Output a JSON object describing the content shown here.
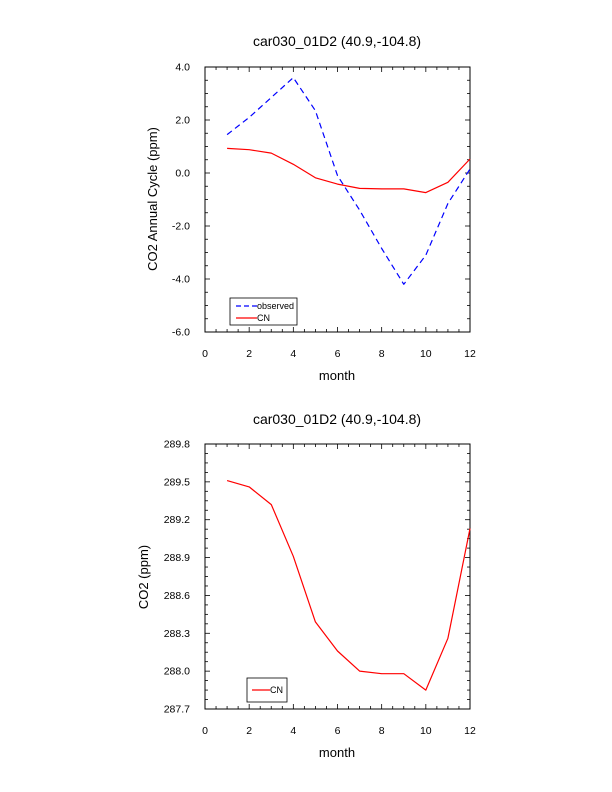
{
  "chart_data": [
    {
      "type": "line",
      "title": "car030_01D2 (40.9,-104.8)",
      "xlabel": "month",
      "ylabel": "CO2 Annual Cycle (ppm)",
      "xlim": [
        0,
        12
      ],
      "ylim": [
        -6.0,
        4.0
      ],
      "xticks": [
        0,
        2,
        4,
        6,
        8,
        10,
        12
      ],
      "xtick_labels": [
        "0",
        "2",
        "4",
        "6",
        "8",
        "10",
        "12"
      ],
      "yticks": [
        -6.0,
        -4.0,
        -2.0,
        0.0,
        2.0,
        4.0
      ],
      "ytick_labels": [
        "-6.0",
        "-4.0",
        "-2.0",
        "0.0",
        "2.0",
        "4.0"
      ],
      "grid": false,
      "legend_position": "bottom-left",
      "x": [
        1,
        2,
        3,
        4,
        5,
        6,
        7,
        8,
        9,
        10,
        11,
        12
      ],
      "series": [
        {
          "name": "observed",
          "color": "#0000ff",
          "dash": "dashed",
          "values": [
            1.45,
            2.1,
            2.85,
            3.6,
            2.35,
            -0.1,
            -1.4,
            -2.85,
            -4.2,
            -3.1,
            -1.15,
            0.15
          ]
        },
        {
          "name": "CN",
          "color": "#ff0000",
          "dash": "solid",
          "values": [
            0.93,
            0.88,
            0.75,
            0.33,
            -0.18,
            -0.42,
            -0.58,
            -0.6,
            -0.6,
            -0.74,
            -0.35,
            0.53
          ]
        }
      ]
    },
    {
      "type": "line",
      "title": "car030_01D2 (40.9,-104.8)",
      "xlabel": "month",
      "ylabel": "CO2 (ppm)",
      "xlim": [
        0,
        12
      ],
      "ylim": [
        287.7,
        289.8
      ],
      "xticks": [
        0,
        2,
        4,
        6,
        8,
        10,
        12
      ],
      "xtick_labels": [
        "0",
        "2",
        "4",
        "6",
        "8",
        "10",
        "12"
      ],
      "yticks": [
        287.7,
        288.0,
        288.3,
        288.6,
        288.9,
        289.2,
        289.5,
        289.8
      ],
      "ytick_labels": [
        "287.7",
        "288.0",
        "288.3",
        "288.6",
        "288.9",
        "289.2",
        "289.5",
        "289.8"
      ],
      "grid": false,
      "legend_position": "bottom-left",
      "x": [
        1,
        2,
        3,
        4,
        5,
        6,
        7,
        8,
        9,
        10,
        11,
        12
      ],
      "series": [
        {
          "name": "CN",
          "color": "#ff0000",
          "dash": "solid",
          "values": [
            289.51,
            289.46,
            289.32,
            288.91,
            288.39,
            288.16,
            288.0,
            287.98,
            287.98,
            287.85,
            288.26,
            289.13
          ]
        }
      ]
    }
  ]
}
